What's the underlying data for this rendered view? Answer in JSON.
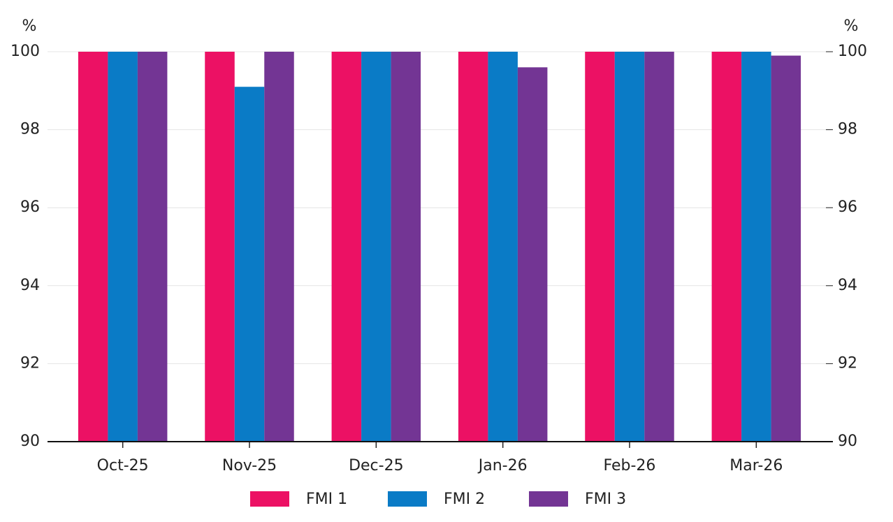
{
  "chart_data": {
    "type": "bar",
    "y_label": "%",
    "y2_label": "%",
    "categories": [
      "Oct-25",
      "Nov-25",
      "Dec-25",
      "Jan-26",
      "Feb-26",
      "Mar-26"
    ],
    "series": [
      {
        "name": "FMI 1",
        "color": "#ec1164",
        "values": [
          100,
          100,
          100,
          100,
          100,
          100
        ]
      },
      {
        "name": "FMI 2",
        "color": "#0a7bc6",
        "values": [
          100,
          99.1,
          100,
          100,
          100,
          100
        ]
      },
      {
        "name": "FMI 3",
        "color": "#733594",
        "values": [
          100,
          100,
          100,
          99.6,
          100,
          99.9
        ]
      }
    ],
    "ylim": [
      90,
      100
    ],
    "yticks": [
      90,
      92,
      94,
      96,
      98,
      100
    ],
    "y2lim": [
      90,
      100
    ],
    "y2ticks": [
      90,
      92,
      94,
      96,
      98,
      100
    ],
    "grid": true
  }
}
